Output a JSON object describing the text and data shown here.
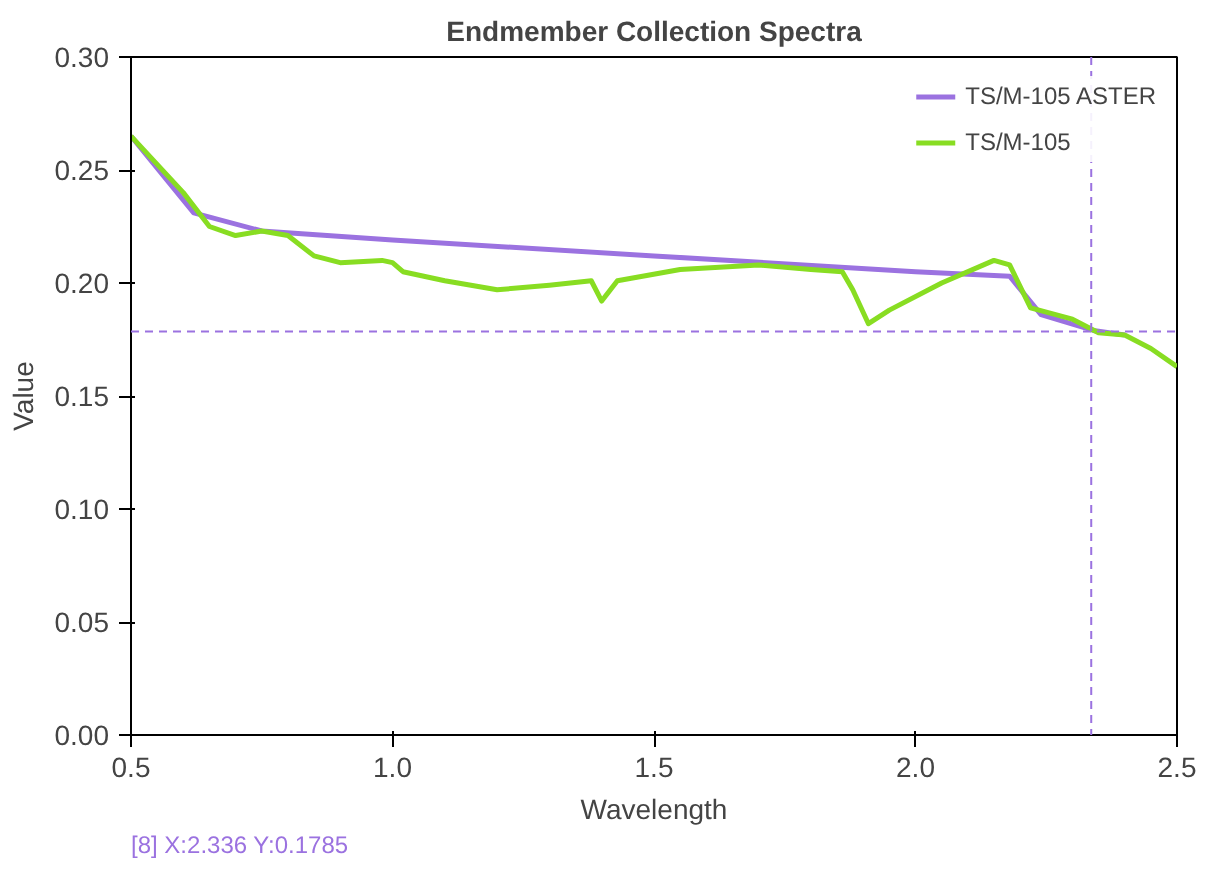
{
  "chart_data": {
    "type": "line",
    "title": "Endmember Collection Spectra",
    "xlabel": "Wavelength",
    "ylabel": "Value",
    "xlim": [
      0.5,
      2.5
    ],
    "ylim": [
      0,
      0.3
    ],
    "xticks": [
      {
        "value": 0.5,
        "label": "0.5"
      },
      {
        "value": 1.0,
        "label": "1.0"
      },
      {
        "value": 1.5,
        "label": "1.5"
      },
      {
        "value": 2.0,
        "label": "2.0"
      },
      {
        "value": 2.5,
        "label": "2.5"
      }
    ],
    "yticks": [
      {
        "value": 0,
        "label": "0.00"
      },
      {
        "value": 0.05,
        "label": "0.05"
      },
      {
        "value": 0.1,
        "label": "0.10"
      },
      {
        "value": 0.15,
        "label": "0.15"
      },
      {
        "value": 0.2,
        "label": "0.20"
      },
      {
        "value": 0.25,
        "label": "0.25"
      },
      {
        "value": 0.3,
        "label": "0.30"
      }
    ],
    "grid": false,
    "legend": "top right",
    "series": [
      {
        "name": "TS/M-105 ASTER",
        "color": "#9b72e0",
        "x": [
          0.5,
          0.62,
          0.75,
          1.0,
          1.5,
          2.0,
          2.18,
          2.24,
          2.34,
          2.4
        ],
        "values": [
          0.265,
          0.231,
          0.223,
          0.219,
          0.212,
          0.205,
          0.203,
          0.186,
          0.179,
          0.177
        ]
      },
      {
        "name": "TS/M-105",
        "color": "#88dd22",
        "x": [
          0.5,
          0.6,
          0.65,
          0.7,
          0.75,
          0.8,
          0.85,
          0.9,
          0.98,
          1.0,
          1.02,
          1.1,
          1.2,
          1.3,
          1.38,
          1.4,
          1.43,
          1.55,
          1.7,
          1.8,
          1.86,
          1.88,
          1.91,
          1.95,
          2.05,
          2.15,
          2.18,
          2.22,
          2.3,
          2.35,
          2.4,
          2.45,
          2.5
        ],
        "values": [
          0.265,
          0.24,
          0.225,
          0.221,
          0.223,
          0.221,
          0.212,
          0.209,
          0.21,
          0.209,
          0.205,
          0.201,
          0.197,
          0.199,
          0.201,
          0.192,
          0.201,
          0.206,
          0.208,
          0.206,
          0.205,
          0.197,
          0.182,
          0.188,
          0.2,
          0.21,
          0.208,
          0.189,
          0.184,
          0.178,
          0.177,
          0.171,
          0.163
        ]
      }
    ],
    "ref_lines": [
      {
        "axis": "x",
        "value": 2.336,
        "color": "#9b72e0",
        "line_style": "dashed"
      },
      {
        "axis": "y",
        "value": 0.1785,
        "color": "#9b72e0",
        "line_style": "dashed"
      }
    ],
    "annotations": [
      "[8] X:2.336 Y:0.1785"
    ]
  }
}
